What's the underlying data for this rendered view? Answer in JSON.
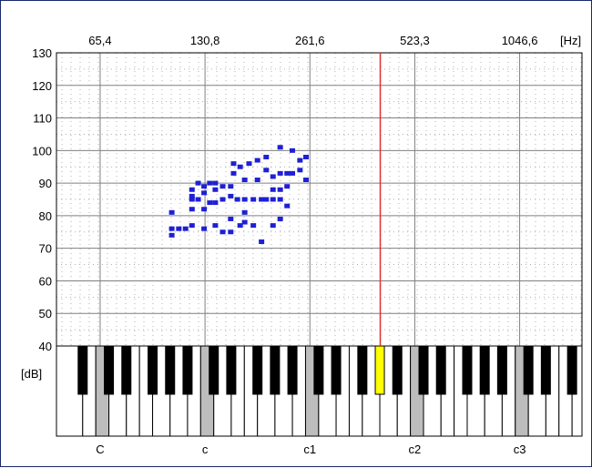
{
  "colors": {
    "point": "#1f1fd4",
    "marker": "#e03030",
    "grid": "#808080",
    "dot": "#b0b0b0",
    "highlight_key": "#ffff00",
    "c_key": "#bdbdbd",
    "black_key": "#000000"
  },
  "chart_data": {
    "type": "scatter",
    "x_scale": "log2",
    "x_unit": "[Hz]",
    "y_unit": "[dB]",
    "x_ticks": [
      {
        "hz": 65.4,
        "label": "65,4"
      },
      {
        "hz": 130.8,
        "label": "130,8"
      },
      {
        "hz": 261.6,
        "label": "261,6"
      },
      {
        "hz": 523.3,
        "label": "523,3"
      },
      {
        "hz": 1046.6,
        "label": "1046,6"
      }
    ],
    "y_ticks": [
      130,
      120,
      110,
      100,
      90,
      80,
      70,
      60,
      50,
      40
    ],
    "ylim": [
      40,
      130
    ],
    "xlim_hz": [
      49.0,
      1580.0
    ],
    "grid": true,
    "marker_hz": 415.3,
    "keyboard": {
      "start_note": "A1",
      "highlight_note": "G#4",
      "c_labels": [
        {
          "note": "C2",
          "label": "C"
        },
        {
          "note": "C3",
          "label": "c"
        },
        {
          "note": "C4",
          "label": "c1"
        },
        {
          "note": "C5",
          "label": "c2"
        },
        {
          "note": "C6",
          "label": "c3"
        }
      ]
    },
    "points": [
      {
        "x": 105,
        "y": 74
      },
      {
        "x": 105,
        "y": 76
      },
      {
        "x": 105,
        "y": 81
      },
      {
        "x": 110,
        "y": 76
      },
      {
        "x": 115,
        "y": 76
      },
      {
        "x": 120,
        "y": 77
      },
      {
        "x": 120,
        "y": 82
      },
      {
        "x": 120,
        "y": 85
      },
      {
        "x": 120,
        "y": 86
      },
      {
        "x": 120,
        "y": 88
      },
      {
        "x": 125,
        "y": 85
      },
      {
        "x": 125,
        "y": 90
      },
      {
        "x": 130,
        "y": 76
      },
      {
        "x": 130,
        "y": 82
      },
      {
        "x": 130,
        "y": 87
      },
      {
        "x": 130,
        "y": 89
      },
      {
        "x": 135,
        "y": 90
      },
      {
        "x": 135,
        "y": 84
      },
      {
        "x": 140,
        "y": 77
      },
      {
        "x": 140,
        "y": 84
      },
      {
        "x": 140,
        "y": 88
      },
      {
        "x": 140,
        "y": 90
      },
      {
        "x": 147,
        "y": 75
      },
      {
        "x": 147,
        "y": 85
      },
      {
        "x": 147,
        "y": 89
      },
      {
        "x": 155,
        "y": 75
      },
      {
        "x": 155,
        "y": 79
      },
      {
        "x": 155,
        "y": 86
      },
      {
        "x": 155,
        "y": 89
      },
      {
        "x": 158,
        "y": 96
      },
      {
        "x": 158,
        "y": 93
      },
      {
        "x": 162,
        "y": 85
      },
      {
        "x": 165,
        "y": 77
      },
      {
        "x": 165,
        "y": 95
      },
      {
        "x": 170,
        "y": 78
      },
      {
        "x": 170,
        "y": 81
      },
      {
        "x": 170,
        "y": 85
      },
      {
        "x": 170,
        "y": 91
      },
      {
        "x": 175,
        "y": 96
      },
      {
        "x": 180,
        "y": 85
      },
      {
        "x": 180,
        "y": 77
      },
      {
        "x": 185,
        "y": 91
      },
      {
        "x": 185,
        "y": 97
      },
      {
        "x": 190,
        "y": 72
      },
      {
        "x": 190,
        "y": 85
      },
      {
        "x": 196,
        "y": 94
      },
      {
        "x": 196,
        "y": 98
      },
      {
        "x": 196,
        "y": 85
      },
      {
        "x": 205,
        "y": 77
      },
      {
        "x": 205,
        "y": 85
      },
      {
        "x": 205,
        "y": 88
      },
      {
        "x": 205,
        "y": 92
      },
      {
        "x": 215,
        "y": 79
      },
      {
        "x": 215,
        "y": 85
      },
      {
        "x": 215,
        "y": 88
      },
      {
        "x": 215,
        "y": 93
      },
      {
        "x": 215,
        "y": 101
      },
      {
        "x": 225,
        "y": 93
      },
      {
        "x": 225,
        "y": 89
      },
      {
        "x": 225,
        "y": 83
      },
      {
        "x": 233,
        "y": 100
      },
      {
        "x": 233,
        "y": 93
      },
      {
        "x": 245,
        "y": 94
      },
      {
        "x": 245,
        "y": 97
      },
      {
        "x": 255,
        "y": 91
      },
      {
        "x": 255,
        "y": 98
      }
    ]
  }
}
